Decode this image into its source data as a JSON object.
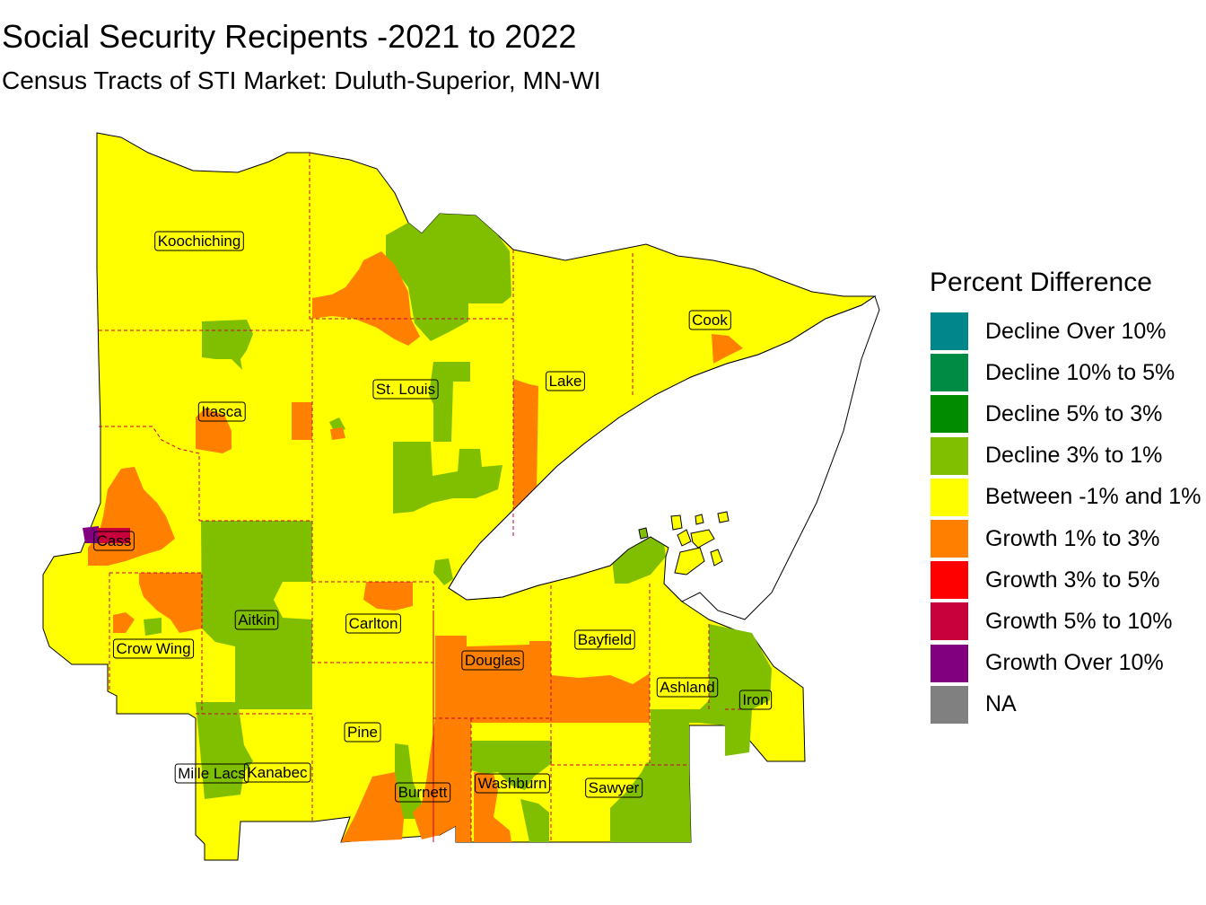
{
  "title": "Social Security Recipents -2021 to 2022",
  "subtitle": "Census Tracts of STI Market: Duluth-Superior, MN-WI",
  "legend": {
    "title": "Percent Difference",
    "items": [
      {
        "label": "Decline Over 10%",
        "color": "#00868B"
      },
      {
        "label": "Decline 10% to 5%",
        "color": "#008B45"
      },
      {
        "label": "Decline 5% to 3%",
        "color": "#008B00"
      },
      {
        "label": "Decline 3% to 1%",
        "color": "#7FBF00"
      },
      {
        "label": "Between -1% and 1%",
        "color": "#FFFF00"
      },
      {
        "label": "Growth 1% to 3%",
        "color": "#FF7F00"
      },
      {
        "label": "Growth 3% to 5%",
        "color": "#FF0000"
      },
      {
        "label": "Growth 5% to 10%",
        "color": "#C8003C"
      },
      {
        "label": "Growth Over 10%",
        "color": "#800080"
      },
      {
        "label": "NA",
        "color": "#808080"
      }
    ]
  },
  "counties": [
    {
      "name": "Koochiching"
    },
    {
      "name": "Cook"
    },
    {
      "name": "Lake"
    },
    {
      "name": "St. Louis"
    },
    {
      "name": "Itasca"
    },
    {
      "name": "Cass"
    },
    {
      "name": "Aitkin"
    },
    {
      "name": "Carlton"
    },
    {
      "name": "Crow Wing"
    },
    {
      "name": "Douglas"
    },
    {
      "name": "Bayfield"
    },
    {
      "name": "Ashland"
    },
    {
      "name": "Iron"
    },
    {
      "name": "Pine"
    },
    {
      "name": "Mille Lacs"
    },
    {
      "name": "Kanabec"
    },
    {
      "name": "Burnett"
    },
    {
      "name": "Washburn"
    },
    {
      "name": "Sawyer"
    }
  ]
}
